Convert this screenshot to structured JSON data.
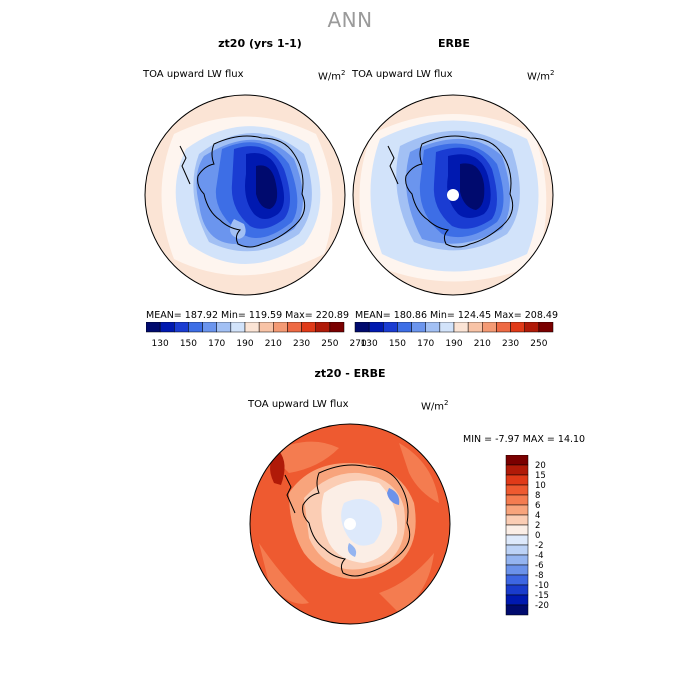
{
  "title": "ANN",
  "panels": {
    "left": {
      "title": "zt20 (yrs 1-1)",
      "variable": "TOA upward LW flux",
      "units": "W/m",
      "units_exp": "2",
      "stats": "MEAN= 187.92  Min= 119.59  Max= 220.89"
    },
    "right": {
      "title": "ERBE",
      "variable": "TOA upward LW flux",
      "units": "W/m",
      "units_exp": "2",
      "stats": "MEAN= 180.86  Min= 124.45  Max= 208.49"
    },
    "diff": {
      "title": "zt20 - ERBE",
      "variable": "TOA upward LW flux",
      "units": "W/m",
      "units_exp": "2",
      "minmax": "MIN =   -7.97 MAX =   14.10"
    }
  },
  "colorbar_top": {
    "labels": [
      "130",
      "150",
      "170",
      "190",
      "210",
      "230",
      "250",
      "270"
    ],
    "colors": [
      "#000a6e",
      "#0019b0",
      "#1a3cd2",
      "#3d6ee6",
      "#6b95ee",
      "#a2c0f4",
      "#d2e3fa",
      "#fbe4d5",
      "#f8c3a6",
      "#f49a74",
      "#ee6a44",
      "#e03a18",
      "#b01a08",
      "#7a0000"
    ]
  },
  "colorbar_diff": {
    "labels": [
      "20",
      "15",
      "10",
      "8",
      "6",
      "4",
      "2",
      "0",
      "-2",
      "-4",
      "-6",
      "-8",
      "-10",
      "-15",
      "-20"
    ],
    "colors": [
      "#7a0000",
      "#b01a08",
      "#e03a18",
      "#ee5a30",
      "#f47c50",
      "#f8a47c",
      "#fbcdb4",
      "#fbeee6",
      "#dde9fb",
      "#bcd2f6",
      "#94b4f0",
      "#6b92ea",
      "#3d66e2",
      "#1a3ccc",
      "#0019b0",
      "#000a6e"
    ]
  }
}
